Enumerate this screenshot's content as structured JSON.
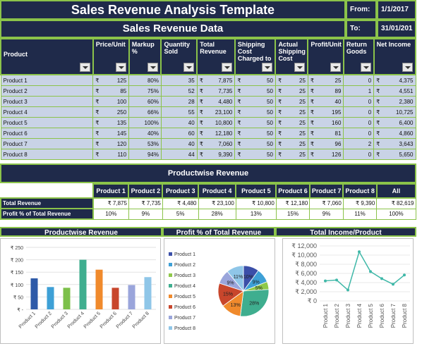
{
  "header": {
    "title": "Sales Revenue Analysis Template",
    "subtitle": "Sales Revenue Data",
    "from_label": "From:",
    "from_value": "1/1/2017",
    "to_label": "To:",
    "to_value": "31/01/201"
  },
  "table": {
    "columns": [
      "Product",
      "Price/Unit",
      "Markup %",
      "Quantity Sold",
      "Total Revenue",
      "Shipping Cost Charged to",
      "Actual Shipping Cost",
      "Profit/Unit",
      "Return Goods",
      "Net Income"
    ],
    "currency": "₹",
    "rows": [
      {
        "product": "Product 1",
        "price": "125",
        "markup": "80%",
        "qty": "35",
        "total": "7,875",
        "ship_charged": "50",
        "ship_actual": "25",
        "profit": "25",
        "returns": "0",
        "net": "4,375"
      },
      {
        "product": "Product 2",
        "price": "85",
        "markup": "75%",
        "qty": "52",
        "total": "7,735",
        "ship_charged": "50",
        "ship_actual": "25",
        "profit": "89",
        "returns": "1",
        "net": "4,551"
      },
      {
        "product": "Product 3",
        "price": "100",
        "markup": "60%",
        "qty": "28",
        "total": "4,480",
        "ship_charged": "50",
        "ship_actual": "25",
        "profit": "40",
        "returns": "0",
        "net": "2,380"
      },
      {
        "product": "Product 4",
        "price": "250",
        "markup": "66%",
        "qty": "55",
        "total": "23,100",
        "ship_charged": "50",
        "ship_actual": "25",
        "profit": "195",
        "returns": "0",
        "net": "10,725"
      },
      {
        "product": "Product 5",
        "price": "135",
        "markup": "100%",
        "qty": "40",
        "total": "10,800",
        "ship_charged": "50",
        "ship_actual": "25",
        "profit": "160",
        "returns": "0",
        "net": "6,400"
      },
      {
        "product": "Product 6",
        "price": "145",
        "markup": "40%",
        "qty": "60",
        "total": "12,180",
        "ship_charged": "50",
        "ship_actual": "25",
        "profit": "81",
        "returns": "0",
        "net": "4,860"
      },
      {
        "product": "Product 7",
        "price": "120",
        "markup": "53%",
        "qty": "40",
        "total": "7,060",
        "ship_charged": "50",
        "ship_actual": "25",
        "profit": "96",
        "returns": "2",
        "net": "3,643"
      },
      {
        "product": "Product 8",
        "price": "110",
        "markup": "94%",
        "qty": "44",
        "total": "9,390",
        "ship_charged": "50",
        "ship_actual": "25",
        "profit": "126",
        "returns": "0",
        "net": "5,650"
      }
    ]
  },
  "productwise": {
    "title": "Productwise Revenue",
    "headers": [
      "Product 1",
      "Product 2",
      "Product 3",
      "Product 4",
      "Product 5",
      "Product 6",
      "Product 7",
      "Product 8",
      "All"
    ],
    "total_label": "Total Revenue",
    "totals": [
      "₹ 7,875",
      "₹ 7,735",
      "₹ 4,480",
      "₹ 23,100",
      "₹ 10,800",
      "₹ 12,180",
      "₹ 7,060",
      "₹ 9,390",
      "₹ 82,619"
    ],
    "profit_label": "Profit % of Total Revenue",
    "profits": [
      "10%",
      "9%",
      "5%",
      "28%",
      "13%",
      "15%",
      "9%",
      "11%",
      "100%"
    ]
  },
  "chart_data": [
    {
      "type": "bar",
      "title": "Productwise Revenue",
      "categories": [
        "Product 1",
        "Product 2",
        "Product 3",
        "Product 4",
        "Product 5",
        "Product 6",
        "Product 7",
        "Product 8"
      ],
      "values": [
        125,
        90,
        87,
        200,
        160,
        87,
        98,
        130
      ],
      "yticks": [
        "₹ 250",
        "₹ 200",
        "₹ 150",
        "₹ 100",
        "₹ 50",
        "₹ -"
      ],
      "ylim": [
        0,
        250
      ],
      "colors": [
        "#2e5aa8",
        "#3ea0d6",
        "#7cc04a",
        "#3fae8f",
        "#f08a2c",
        "#c8462c",
        "#9aa5db",
        "#8fc6e8"
      ]
    },
    {
      "type": "pie",
      "title": "Profit % of Total Revenue",
      "labels": [
        "Product 1",
        "Product 2",
        "Product 3",
        "Product 4",
        "Product 5",
        "Product 6",
        "Product 7",
        "Product 8"
      ],
      "values": [
        10,
        9,
        5,
        28,
        13,
        15,
        9,
        11
      ],
      "slice_labels": [
        "10%",
        "9%",
        "5%",
        "28%",
        "13%",
        "15%",
        "9%",
        "11%"
      ],
      "colors": [
        "#3b4fa8",
        "#3ea0d6",
        "#8fc94a",
        "#3fae8f",
        "#f08a2c",
        "#c8462c",
        "#9aa5db",
        "#8fc6e8"
      ]
    },
    {
      "type": "line",
      "title": "Total Income/Product",
      "categories": [
        "Product 1",
        "Product 2",
        "Product 3",
        "Product 4",
        "Product 5",
        "Product 6",
        "Product 7",
        "Product 8"
      ],
      "values": [
        4375,
        4551,
        2380,
        10725,
        6400,
        4860,
        3643,
        5650
      ],
      "yticks": [
        "₹ 12,000",
        "₹ 10,000",
        "₹ 8,000",
        "₹ 6,000",
        "₹ 4,000",
        "₹ 2,000",
        "₹ 0"
      ],
      "ylim": [
        0,
        12000
      ],
      "color": "#3fb8a8"
    }
  ]
}
